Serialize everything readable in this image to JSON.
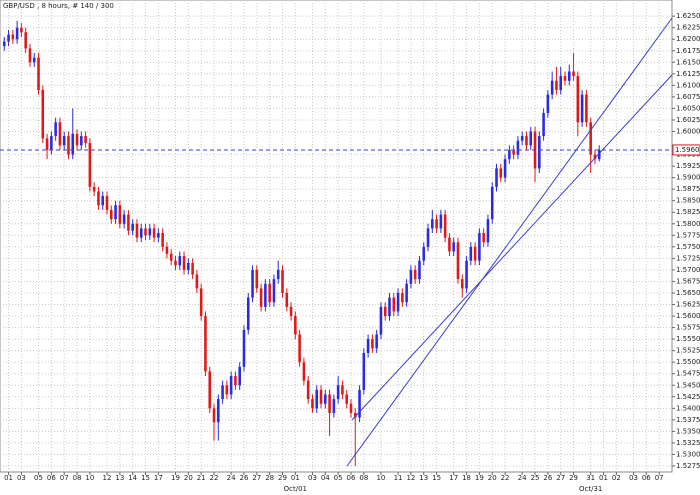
{
  "chart_data": {
    "type": "candlestick",
    "title": "GBP/USD , 8 hours, # 140 / 300",
    "up_color": "#2a2ae0",
    "down_color": "#e01818",
    "grid": true,
    "xlim": [
      -1,
      156
    ],
    "ylim": [
      1.5262,
      1.6285
    ],
    "xticks": [
      {
        "value": 1,
        "label": "01"
      },
      {
        "value": 4,
        "label": "03"
      },
      {
        "value": 8,
        "label": "05"
      },
      {
        "value": 11,
        "label": "06"
      },
      {
        "value": 14,
        "label": "07"
      },
      {
        "value": 17,
        "label": "08"
      },
      {
        "value": 20,
        "label": "10"
      },
      {
        "value": 24,
        "label": "12"
      },
      {
        "value": 27,
        "label": "13"
      },
      {
        "value": 30,
        "label": "14"
      },
      {
        "value": 33,
        "label": "15"
      },
      {
        "value": 36,
        "label": "17"
      },
      {
        "value": 40,
        "label": "19"
      },
      {
        "value": 43,
        "label": "20"
      },
      {
        "value": 46,
        "label": "21"
      },
      {
        "value": 49,
        "label": "22"
      },
      {
        "value": 53,
        "label": "24"
      },
      {
        "value": 56,
        "label": "26"
      },
      {
        "value": 59,
        "label": "27"
      },
      {
        "value": 62,
        "label": "28"
      },
      {
        "value": 65,
        "label": "29"
      },
      {
        "value": 68,
        "label": "01"
      },
      {
        "value": 72,
        "label": "03"
      },
      {
        "value": 75,
        "label": "04"
      },
      {
        "value": 78,
        "label": "05"
      },
      {
        "value": 81,
        "label": "06"
      },
      {
        "value": 84,
        "label": "08"
      },
      {
        "value": 88,
        "label": "10"
      },
      {
        "value": 92,
        "label": "11"
      },
      {
        "value": 95,
        "label": "12"
      },
      {
        "value": 98,
        "label": "13"
      },
      {
        "value": 101,
        "label": "15"
      },
      {
        "value": 105,
        "label": "17"
      },
      {
        "value": 108,
        "label": "18"
      },
      {
        "value": 111,
        "label": "19"
      },
      {
        "value": 114,
        "label": "20"
      },
      {
        "value": 117,
        "label": "22"
      },
      {
        "value": 121,
        "label": "24"
      },
      {
        "value": 124,
        "label": "25"
      },
      {
        "value": 127,
        "label": "26"
      },
      {
        "value": 130,
        "label": "27"
      },
      {
        "value": 133,
        "label": "29"
      },
      {
        "value": 137,
        "label": "31"
      },
      {
        "value": 140,
        "label": "01"
      },
      {
        "value": 143,
        "label": "02"
      },
      {
        "value": 147,
        "label": "03"
      },
      {
        "value": 150,
        "label": "06"
      },
      {
        "value": 153,
        "label": "07"
      }
    ],
    "xticks2": [
      {
        "value": 68,
        "label": "Oct/01"
      },
      {
        "value": 137,
        "label": "Oct/31"
      }
    ],
    "yticks": [
      {
        "value": 1.625,
        "label": "1.6250"
      },
      1.6225,
      {
        "value": 1.62,
        "label": "1.6200"
      },
      1.6175,
      {
        "value": 1.615,
        "label": "1.6150"
      },
      1.6125,
      {
        "value": 1.61,
        "label": "1.6100"
      },
      1.6075,
      {
        "value": 1.605,
        "label": "1.6050"
      },
      1.6025,
      {
        "value": 1.6,
        "label": "1.6000"
      },
      {
        "value": 1.595,
        "label": "1.5950"
      },
      1.5925,
      {
        "value": 1.59,
        "label": "1.5900"
      },
      1.5875,
      {
        "value": 1.585,
        "label": "1.5850"
      },
      1.5825,
      {
        "value": 1.58,
        "label": "1.5800"
      },
      1.5775,
      {
        "value": 1.575,
        "label": "1.5750"
      },
      1.5725,
      {
        "value": 1.57,
        "label": "1.5700"
      },
      1.5675,
      {
        "value": 1.565,
        "label": "1.5650"
      },
      1.5625,
      {
        "value": 1.56,
        "label": "1.5600"
      },
      1.5575,
      {
        "value": 1.555,
        "label": "1.5550"
      },
      1.5525,
      {
        "value": 1.55,
        "label": "1.5500"
      },
      1.5475,
      {
        "value": 1.545,
        "label": "1.5450"
      },
      1.5425,
      {
        "value": 1.54,
        "label": "1.5400"
      },
      1.5375,
      {
        "value": 1.535,
        "label": "1.5350"
      },
      1.5325,
      {
        "value": 1.53,
        "label": "1.5300"
      },
      1.5275
    ],
    "current": {
      "value": 1.596,
      "label": "1.5960"
    },
    "open": [
      1.6185,
      1.6195,
      1.621,
      1.62,
      1.6225,
      1.6215,
      1.618,
      1.615,
      1.616,
      1.609,
      1.5985,
      1.596,
      1.599,
      1.602,
      1.597,
      1.599,
      1.595,
      1.5995,
      1.597,
      1.599,
      1.5975,
      1.588,
      1.587,
      1.584,
      1.586,
      1.583,
      1.581,
      1.584,
      1.58,
      1.582,
      1.5785,
      1.58,
      1.577,
      1.579,
      1.5775,
      1.579,
      1.577,
      1.578,
      1.575,
      1.5735,
      1.572,
      1.571,
      1.573,
      1.57,
      1.5715,
      1.569,
      1.566,
      1.56,
      1.548,
      1.54,
      1.537,
      1.542,
      1.545,
      1.543,
      1.547,
      1.545,
      1.549,
      1.557,
      1.564,
      1.57,
      1.566,
      1.562,
      1.567,
      1.563,
      1.568,
      1.57,
      1.565,
      1.562,
      1.56,
      1.556,
      1.55,
      1.546,
      1.542,
      1.54,
      1.544,
      1.541,
      1.543,
      1.539,
      1.542,
      1.545,
      1.543,
      1.541,
      1.539,
      1.538,
      1.544,
      1.552,
      1.555,
      1.553,
      1.556,
      1.562,
      1.56,
      1.564,
      1.561,
      1.565,
      1.563,
      1.567,
      1.57,
      1.568,
      1.572,
      1.575,
      1.579,
      1.581,
      1.579,
      1.582,
      1.577,
      1.574,
      1.576,
      1.568,
      1.566,
      1.572,
      1.575,
      1.572,
      1.578,
      1.576,
      1.581,
      1.588,
      1.592,
      1.59,
      1.594,
      1.596,
      1.595,
      1.598,
      1.599,
      1.597,
      1.6,
      1.592,
      1.599,
      1.604,
      1.608,
      1.611,
      1.609,
      1.612,
      1.611,
      1.613,
      1.612,
      1.602,
      1.608,
      1.602,
      1.595,
      1.594
    ],
    "close": [
      1.6195,
      1.621,
      1.62,
      1.6225,
      1.6215,
      1.618,
      1.615,
      1.616,
      1.609,
      1.5985,
      1.596,
      1.599,
      1.602,
      1.597,
      1.599,
      1.595,
      1.5995,
      1.597,
      1.599,
      1.5975,
      1.588,
      1.587,
      1.584,
      1.586,
      1.583,
      1.581,
      1.584,
      1.58,
      1.582,
      1.5785,
      1.58,
      1.577,
      1.579,
      1.5775,
      1.579,
      1.577,
      1.578,
      1.575,
      1.5735,
      1.572,
      1.571,
      1.573,
      1.57,
      1.5715,
      1.569,
      1.566,
      1.56,
      1.548,
      1.54,
      1.537,
      1.542,
      1.545,
      1.543,
      1.547,
      1.545,
      1.549,
      1.557,
      1.564,
      1.57,
      1.566,
      1.562,
      1.567,
      1.563,
      1.568,
      1.57,
      1.565,
      1.562,
      1.56,
      1.556,
      1.55,
      1.546,
      1.542,
      1.54,
      1.544,
      1.541,
      1.543,
      1.539,
      1.542,
      1.545,
      1.543,
      1.541,
      1.539,
      1.538,
      1.544,
      1.552,
      1.555,
      1.553,
      1.556,
      1.562,
      1.56,
      1.564,
      1.561,
      1.565,
      1.563,
      1.567,
      1.57,
      1.568,
      1.572,
      1.575,
      1.579,
      1.581,
      1.579,
      1.582,
      1.577,
      1.574,
      1.576,
      1.568,
      1.566,
      1.572,
      1.575,
      1.572,
      1.578,
      1.576,
      1.581,
      1.588,
      1.592,
      1.59,
      1.594,
      1.596,
      1.595,
      1.598,
      1.599,
      1.597,
      1.6,
      1.592,
      1.599,
      1.604,
      1.608,
      1.611,
      1.609,
      1.612,
      1.611,
      1.613,
      1.612,
      1.602,
      1.608,
      1.602,
      1.595,
      1.594,
      1.596
    ],
    "high": [
      1.6205,
      1.622,
      1.622,
      1.624,
      1.6235,
      1.6225,
      1.619,
      1.617,
      1.617,
      1.61,
      1.5995,
      1.6,
      1.603,
      1.603,
      1.6,
      1.6,
      1.605,
      1.6005,
      1.6,
      1.6,
      1.5985,
      1.589,
      1.588,
      1.587,
      1.587,
      1.584,
      1.585,
      1.585,
      1.583,
      1.583,
      1.581,
      1.581,
      1.58,
      1.58,
      1.58,
      1.58,
      1.579,
      1.579,
      1.576,
      1.5745,
      1.573,
      1.574,
      1.574,
      1.5725,
      1.5725,
      1.57,
      1.567,
      1.561,
      1.549,
      1.541,
      1.543,
      1.546,
      1.546,
      1.548,
      1.548,
      1.55,
      1.558,
      1.565,
      1.571,
      1.571,
      1.567,
      1.568,
      1.568,
      1.569,
      1.572,
      1.571,
      1.566,
      1.563,
      1.561,
      1.557,
      1.551,
      1.547,
      1.543,
      1.545,
      1.545,
      1.544,
      1.544,
      1.543,
      1.547,
      1.546,
      1.544,
      1.542,
      1.54,
      1.545,
      1.553,
      1.556,
      1.556,
      1.557,
      1.563,
      1.563,
      1.565,
      1.565,
      1.566,
      1.566,
      1.568,
      1.571,
      1.571,
      1.573,
      1.576,
      1.58,
      1.583,
      1.582,
      1.583,
      1.583,
      1.578,
      1.577,
      1.577,
      1.569,
      1.573,
      1.576,
      1.576,
      1.579,
      1.579,
      1.582,
      1.589,
      1.593,
      1.593,
      1.595,
      1.597,
      1.597,
      1.599,
      1.6,
      1.6,
      1.601,
      1.601,
      1.6,
      1.605,
      1.609,
      1.613,
      1.614,
      1.614,
      1.613,
      1.6145,
      1.617,
      1.613,
      1.609,
      1.609,
      1.603,
      1.596,
      1.597
    ],
    "low": [
      1.6175,
      1.6185,
      1.619,
      1.619,
      1.6205,
      1.617,
      1.614,
      1.614,
      1.608,
      1.5975,
      1.594,
      1.595,
      1.598,
      1.596,
      1.596,
      1.594,
      1.594,
      1.596,
      1.596,
      1.5965,
      1.587,
      1.586,
      1.583,
      1.583,
      1.582,
      1.58,
      1.58,
      1.579,
      1.579,
      1.5775,
      1.5775,
      1.576,
      1.576,
      1.5765,
      1.5765,
      1.576,
      1.576,
      1.574,
      1.5725,
      1.571,
      1.57,
      1.57,
      1.569,
      1.569,
      1.568,
      1.565,
      1.559,
      1.547,
      1.539,
      1.533,
      1.533,
      1.541,
      1.542,
      1.542,
      1.544,
      1.544,
      1.548,
      1.556,
      1.563,
      1.565,
      1.561,
      1.561,
      1.562,
      1.562,
      1.567,
      1.564,
      1.561,
      1.559,
      1.555,
      1.549,
      1.545,
      1.541,
      1.539,
      1.539,
      1.54,
      1.54,
      1.534,
      1.538,
      1.541,
      1.542,
      1.54,
      1.538,
      1.5275,
      1.537,
      1.543,
      1.551,
      1.552,
      1.552,
      1.555,
      1.559,
      1.559,
      1.56,
      1.56,
      1.562,
      1.562,
      1.566,
      1.567,
      1.567,
      1.571,
      1.574,
      1.578,
      1.578,
      1.578,
      1.576,
      1.573,
      1.573,
      1.567,
      1.564,
      1.565,
      1.571,
      1.571,
      1.571,
      1.575,
      1.575,
      1.58,
      1.587,
      1.589,
      1.589,
      1.593,
      1.594,
      1.594,
      1.597,
      1.596,
      1.596,
      1.589,
      1.591,
      1.598,
      1.603,
      1.607,
      1.608,
      1.608,
      1.61,
      1.61,
      1.611,
      1.599,
      1.601,
      1.601,
      1.591,
      1.593,
      1.5935
    ]
  }
}
